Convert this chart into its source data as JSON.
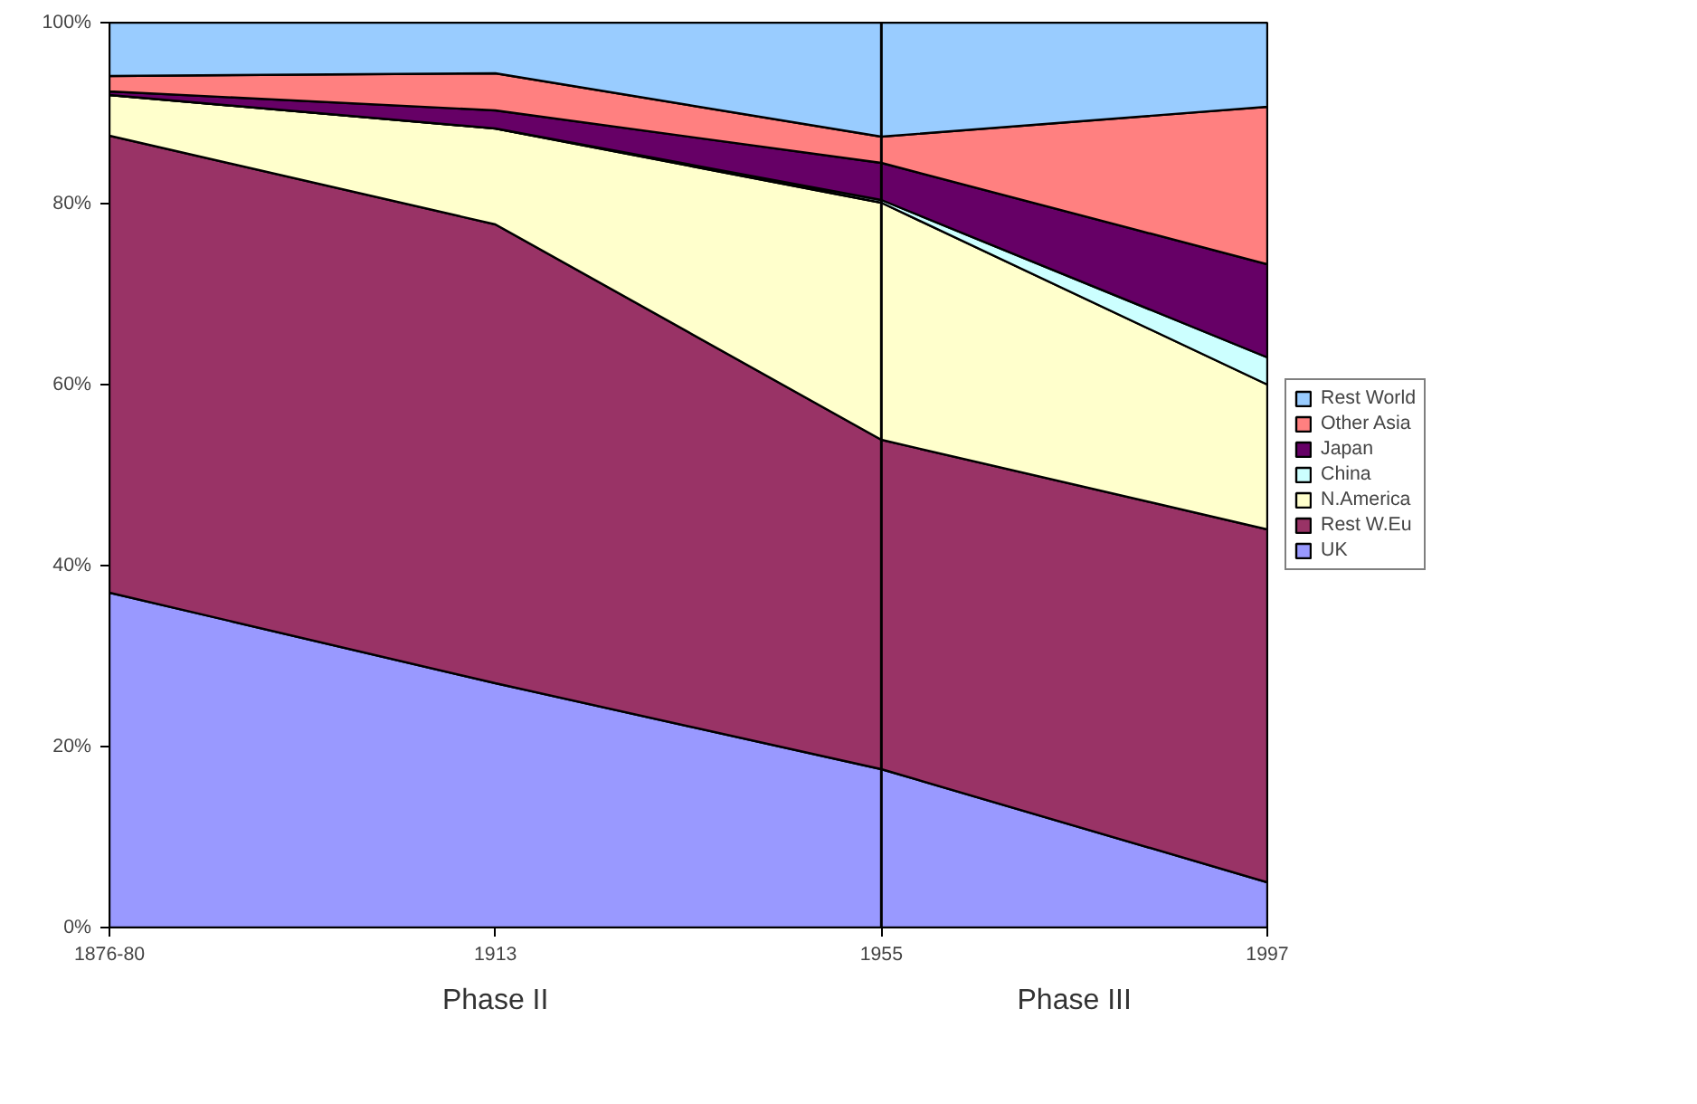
{
  "chart_data": {
    "type": "area",
    "stacked": true,
    "categories": [
      "1876-80",
      "1913",
      "1955",
      "1997"
    ],
    "series": [
      {
        "name": "UK",
        "color": "#9999ff",
        "values": [
          37,
          27,
          17.5,
          5
        ]
      },
      {
        "name": "Rest W.Eu",
        "color": "#993366",
        "values": [
          50.5,
          50.7,
          36.4,
          39
        ]
      },
      {
        "name": "N.America",
        "color": "#ffffcc",
        "values": [
          4.5,
          10.6,
          26.2,
          16
        ]
      },
      {
        "name": "China",
        "color": "#ccffff",
        "values": [
          0,
          0,
          0.3,
          3
        ]
      },
      {
        "name": "Japan",
        "color": "#660066",
        "values": [
          0.4,
          2,
          4.1,
          10.3
        ]
      },
      {
        "name": "Other Asia",
        "color": "#ff8080",
        "values": [
          1.7,
          4.1,
          2.9,
          17.4
        ]
      },
      {
        "name": "Rest World",
        "color": "#99ccff",
        "values": [
          5.9,
          5.6,
          12.6,
          9.3
        ]
      }
    ],
    "ylim": [
      0,
      100
    ],
    "yticks": [
      {
        "value": 0,
        "label": "0%"
      },
      {
        "value": 20,
        "label": "20%"
      },
      {
        "value": 40,
        "label": "40%"
      },
      {
        "value": 60,
        "label": "60%"
      },
      {
        "value": 80,
        "label": "80%"
      },
      {
        "value": 100,
        "label": "100%"
      }
    ],
    "ref_lines": [
      {
        "axis": "x",
        "value": "1955",
        "color": "#000000"
      }
    ],
    "annotations": [
      "Phase II",
      "Phase III"
    ],
    "legend": "right"
  }
}
